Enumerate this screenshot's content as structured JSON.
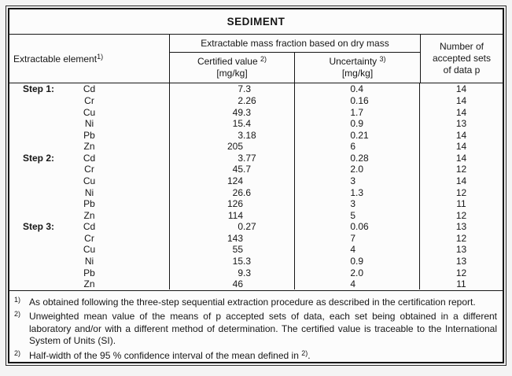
{
  "table": {
    "title": "SEDIMENT",
    "header": {
      "element_label": "Extractable element",
      "element_sup": "1)",
      "group_label": "Extractable mass fraction based on dry mass",
      "certified_label": "Certified value",
      "certified_sup": "2)",
      "certified_unit": "[mg/kg]",
      "uncertainty_label": "Uncertainty",
      "uncertainty_sup": "3)",
      "uncertainty_unit": "[mg/kg]",
      "sets_lines": [
        "Number of",
        "accepted sets",
        "of data p"
      ]
    },
    "rows": [
      {
        "step": "Step 1:",
        "element": "Cd",
        "certified": "7.3",
        "uncertainty": "0.4",
        "sets": "14"
      },
      {
        "step": "",
        "element": "Cr",
        "certified": "2.26",
        "uncertainty": "0.16",
        "sets": "14"
      },
      {
        "step": "",
        "element": "Cu",
        "certified": "49.3",
        "uncertainty": "1.7",
        "sets": "14"
      },
      {
        "step": "",
        "element": "Ni",
        "certified": "15.4",
        "uncertainty": "0.9",
        "sets": "13"
      },
      {
        "step": "",
        "element": "Pb",
        "certified": "3.18",
        "uncertainty": "0.21",
        "sets": "14"
      },
      {
        "step": "",
        "element": "Zn",
        "certified": "205",
        "uncertainty": "6",
        "sets": "14"
      },
      {
        "step": "Step 2:",
        "element": "Cd",
        "certified": "3.77",
        "uncertainty": "0.28",
        "sets": "14"
      },
      {
        "step": "",
        "element": "Cr",
        "certified": "45.7",
        "uncertainty": "2.0",
        "sets": "12"
      },
      {
        "step": "",
        "element": "Cu",
        "certified": "124",
        "uncertainty": "3",
        "sets": "14"
      },
      {
        "step": "",
        "element": "Ni",
        "certified": "26.6",
        "uncertainty": "1.3",
        "sets": "12"
      },
      {
        "step": "",
        "element": "Pb",
        "certified": "126",
        "uncertainty": "3",
        "sets": "11"
      },
      {
        "step": "",
        "element": "Zn",
        "certified": "114",
        "uncertainty": "5",
        "sets": "12"
      },
      {
        "step": "Step 3:",
        "element": "Cd",
        "certified": "0.27",
        "uncertainty": "0.06",
        "sets": "13"
      },
      {
        "step": "",
        "element": "Cr",
        "certified": "143",
        "uncertainty": "7",
        "sets": "12"
      },
      {
        "step": "",
        "element": "Cu",
        "certified": "55",
        "uncertainty": "4",
        "sets": "13"
      },
      {
        "step": "",
        "element": "Ni",
        "certified": "15.3",
        "uncertainty": "0.9",
        "sets": "13"
      },
      {
        "step": "",
        "element": "Pb",
        "certified": "9.3",
        "uncertainty": "2.0",
        "sets": "12"
      },
      {
        "step": "",
        "element": "Zn",
        "certified": "46",
        "uncertainty": "4",
        "sets": "11"
      }
    ],
    "footnotes": [
      {
        "marker": "1)",
        "text": "As obtained following the three-step sequential extraction procedure as described in the certification report."
      },
      {
        "marker": "2)",
        "text": "Unweighted mean value of the means of p accepted sets of data, each set being obtained in a different laboratory and/or with a different method of determination. The certified value is traceable to the International System of Units (SI)."
      },
      {
        "marker": "2)",
        "text_before": "Half-width of the 95 % confidence interval of the mean defined in ",
        "sup": "2)",
        "text_after": "."
      }
    ]
  },
  "colors": {
    "border": "#161616",
    "table_bg": "#fcfcfc",
    "page_bg": "#f4f4f4"
  }
}
